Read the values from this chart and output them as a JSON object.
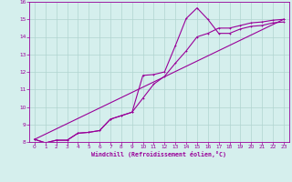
{
  "xlabel": "Windchill (Refroidissement éolien,°C)",
  "xlim": [
    -0.5,
    23.5
  ],
  "ylim": [
    8,
    16
  ],
  "xticks": [
    0,
    1,
    2,
    3,
    4,
    5,
    6,
    7,
    8,
    9,
    10,
    11,
    12,
    13,
    14,
    15,
    16,
    17,
    18,
    19,
    20,
    21,
    22,
    23
  ],
  "yticks": [
    8,
    9,
    10,
    11,
    12,
    13,
    14,
    15,
    16
  ],
  "background_color": "#d5efed",
  "grid_color": "#b0d4d0",
  "line_color": "#990099",
  "line1_x": [
    0,
    1,
    2,
    3,
    4,
    5,
    6,
    7,
    8,
    9,
    10,
    11,
    12,
    13,
    14,
    15,
    16,
    17,
    18,
    19,
    20,
    21,
    22,
    23
  ],
  "line1_y": [
    8.15,
    7.95,
    8.1,
    8.1,
    8.5,
    8.55,
    8.65,
    9.3,
    9.5,
    9.7,
    11.8,
    11.85,
    12.0,
    13.5,
    15.05,
    15.65,
    15.0,
    14.2,
    14.2,
    14.45,
    14.6,
    14.65,
    14.8,
    14.85
  ],
  "line2_x": [
    0,
    1,
    2,
    3,
    4,
    5,
    6,
    7,
    8,
    9,
    10,
    11,
    12,
    13,
    14,
    15,
    16,
    17,
    18,
    19,
    20,
    21,
    22,
    23
  ],
  "line2_y": [
    8.15,
    7.95,
    8.1,
    8.1,
    8.5,
    8.55,
    8.65,
    9.3,
    9.5,
    9.7,
    10.5,
    11.3,
    11.75,
    12.5,
    13.2,
    14.0,
    14.2,
    14.5,
    14.5,
    14.65,
    14.8,
    14.85,
    14.95,
    15.0
  ],
  "line3_x": [
    0,
    23
  ],
  "line3_y": [
    8.15,
    15.0
  ]
}
